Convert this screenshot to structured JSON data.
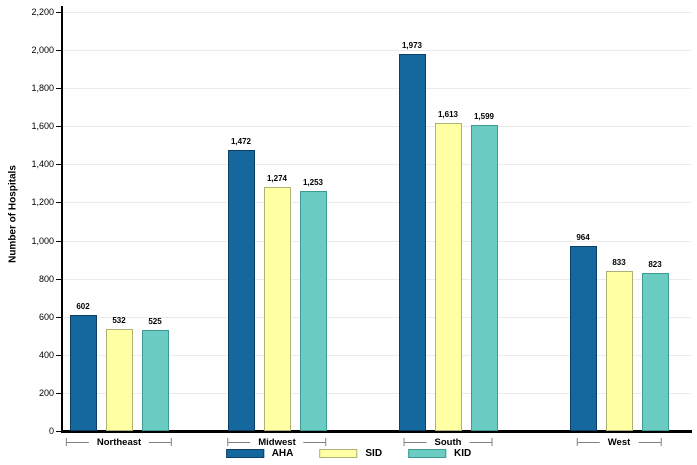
{
  "chart_data": {
    "type": "bar",
    "title": "",
    "ylabel": "Number of Hospitals",
    "xlabel": "",
    "categories": [
      "Northeast",
      "Midwest",
      "South",
      "West"
    ],
    "series": [
      {
        "name": "AHA",
        "color": "#15689d",
        "border_color": "#0c3f63",
        "values": [
          602,
          1472,
          1973,
          964
        ],
        "value_labels": [
          "602",
          "1,472",
          "1,973",
          "964"
        ]
      },
      {
        "name": "SID",
        "color": "#ffffa3",
        "border_color": "#b0b075",
        "values": [
          532,
          1274,
          1613,
          833
        ],
        "value_labels": [
          "532",
          "1,274",
          "1,613",
          "833"
        ]
      },
      {
        "name": "KID",
        "color": "#6bccc3",
        "border_color": "#3e9a92",
        "values": [
          525,
          1253,
          1599,
          823
        ],
        "value_labels": [
          "525",
          "1,253",
          "1,599",
          "823"
        ]
      }
    ],
    "ylim": [
      0,
      2200
    ],
    "ytick_step": 200,
    "ytick_labels": [
      "0",
      "200",
      "400",
      "600",
      "800",
      "1,000",
      "1,200",
      "1,400",
      "1,600",
      "1,800",
      "2,000",
      "2,200"
    ],
    "grid": true,
    "gridline_color": "#ebebeb",
    "axis_color": "#000000",
    "bracket_color": "#808080",
    "legend_position": "bottom-center"
  }
}
